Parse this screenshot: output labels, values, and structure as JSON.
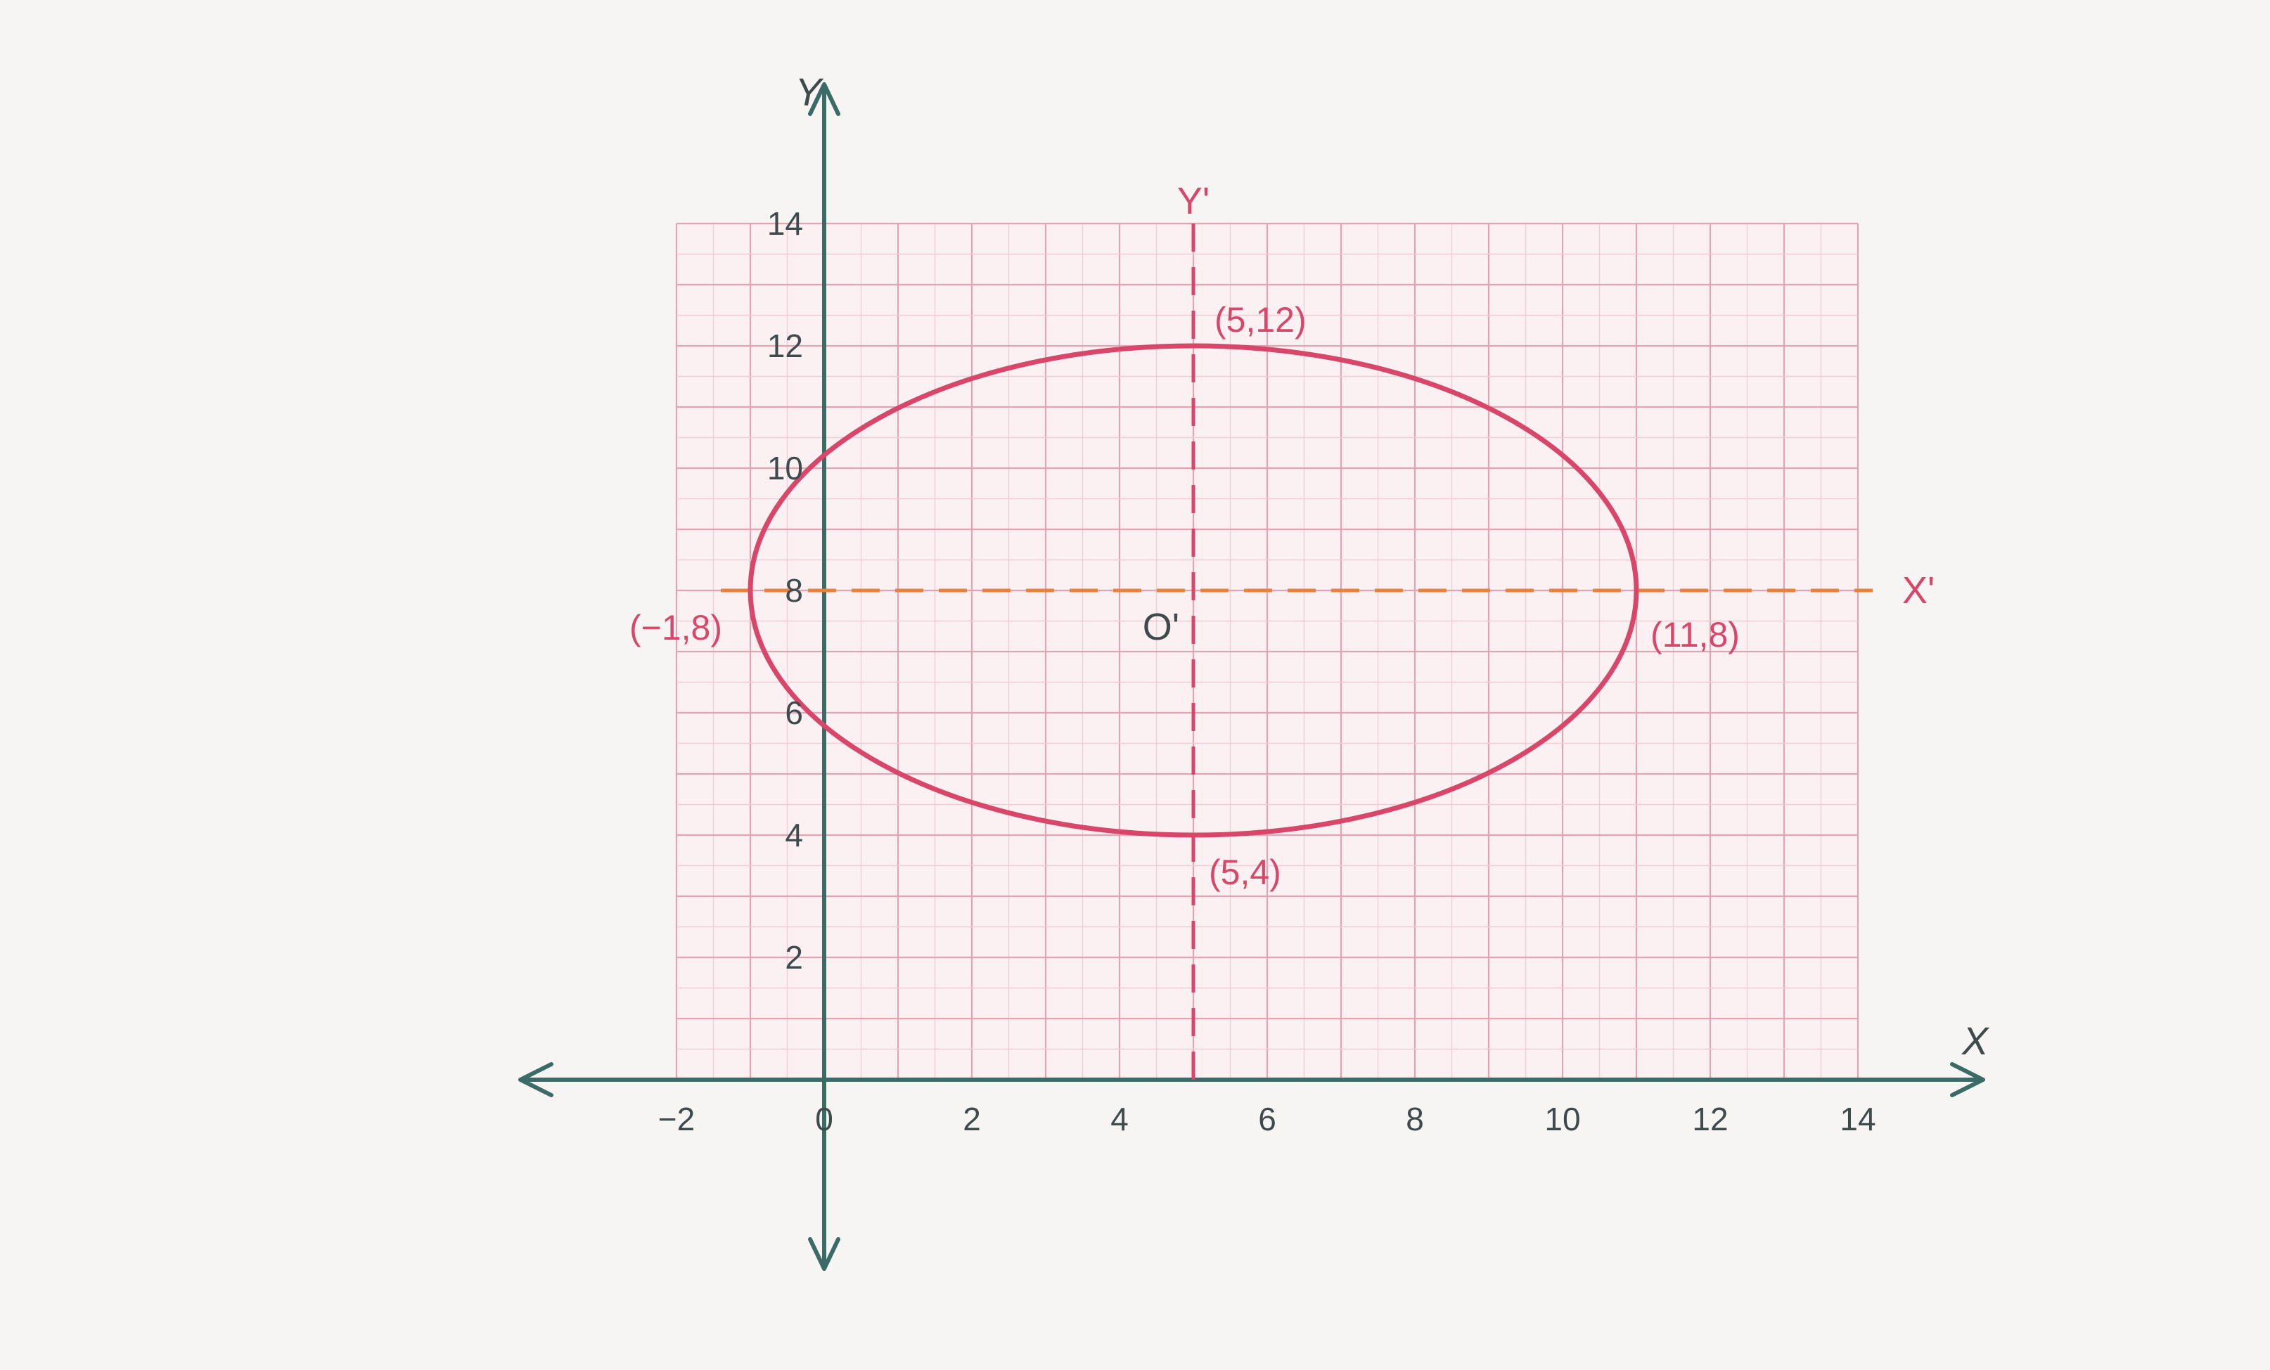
{
  "chart_data": {
    "type": "scatter",
    "title": "",
    "xlabel": "X",
    "ylabel": "Y",
    "xlim": [
      -2,
      14
    ],
    "ylim": [
      0,
      14
    ],
    "grid": true,
    "x_ticks": [
      {
        "value": -2,
        "label": "−2"
      },
      {
        "value": 0,
        "label": "0"
      },
      {
        "value": 2,
        "label": "2"
      },
      {
        "value": 4,
        "label": "4"
      },
      {
        "value": 6,
        "label": "6"
      },
      {
        "value": 8,
        "label": "8"
      },
      {
        "value": 10,
        "label": "10"
      },
      {
        "value": 12,
        "label": "12"
      },
      {
        "value": 14,
        "label": "14"
      }
    ],
    "y_ticks": [
      {
        "value": 2,
        "label": "2"
      },
      {
        "value": 4,
        "label": "4"
      },
      {
        "value": 6,
        "label": "6"
      },
      {
        "value": 8,
        "label": "8"
      },
      {
        "value": 10,
        "label": "10"
      },
      {
        "value": 12,
        "label": "12"
      },
      {
        "value": 14,
        "label": "14"
      }
    ],
    "ellipse": {
      "center": [
        5,
        8
      ],
      "semi_x": 6,
      "semi_y": 4,
      "color": "#d8476a"
    },
    "shifted_axes": {
      "x_axis_label": "X'",
      "y_axis_label": "Y'",
      "origin_label": "O'",
      "x_line_y": 8,
      "y_line_x": 5,
      "x_axis_color": "#e8823a",
      "y_axis_color": "#d8476a"
    },
    "points": [
      {
        "x": 5,
        "y": 12,
        "label": "(5,12)"
      },
      {
        "x": 5,
        "y": 4,
        "label": "(5,4)"
      },
      {
        "x": -1,
        "y": 8,
        "label": "(−1,8)"
      },
      {
        "x": 11,
        "y": 8,
        "label": "(11,8)"
      }
    ],
    "colors": {
      "axis": "#3a6b66",
      "grid_major": "#e2a4b2",
      "grid_minor": "#f0cdd5"
    }
  }
}
